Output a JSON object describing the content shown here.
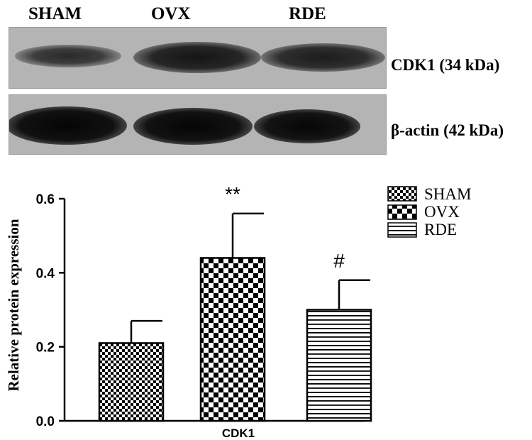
{
  "blot": {
    "lanes": [
      "SHAM",
      "OVX",
      "RDE"
    ],
    "cdk1_label": "CDK1 (34 kDa)",
    "actin_label": "β-actin (42 kDa)"
  },
  "chart_data": {
    "type": "bar",
    "categories": [
      "SHAM",
      "OVX",
      "RDE"
    ],
    "xlabel": "CDK1",
    "ylabel": "Relative protein expression",
    "ylim": [
      0,
      0.6
    ],
    "yticks": [
      "0.0",
      "0.2",
      "0.4",
      "0.6"
    ],
    "values": [
      0.21,
      0.44,
      0.3
    ],
    "errors": [
      0.06,
      0.12,
      0.08
    ],
    "annotations": [
      "",
      "**",
      "#"
    ],
    "legend": [
      "SHAM",
      "OVX",
      "RDE"
    ],
    "legend_position": "top-right",
    "grid": false
  }
}
